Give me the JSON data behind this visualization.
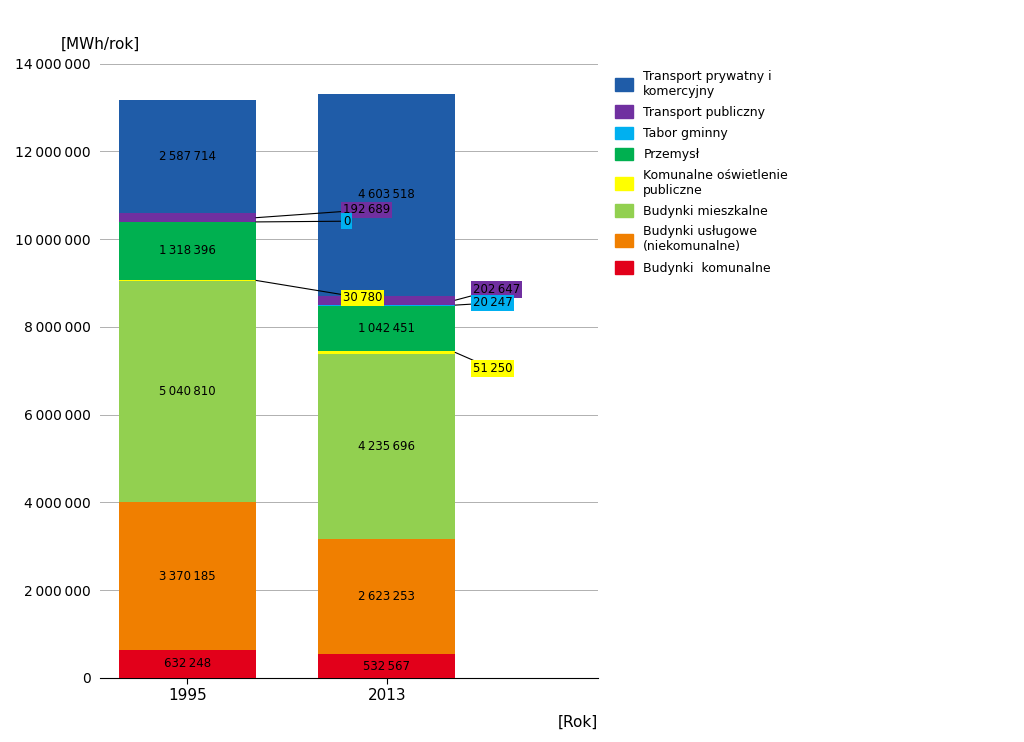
{
  "years": [
    "1995",
    "2013"
  ],
  "categories": [
    "Budynki  komunalne",
    "Budynki usługowe (niekomunalne)",
    "Budynki mieszkalne",
    "Komunalne oświetlenie publiczne",
    "Przemysł",
    "Tabor gminny",
    "Transport publiczny",
    "Transport prywatny i komercyjny"
  ],
  "colors": [
    "#e2001a",
    "#f07f00",
    "#92d050",
    "#ffff00",
    "#00b050",
    "#00b0f0",
    "#7030a0",
    "#1f5ca8"
  ],
  "values_1995": [
    632248,
    3370185,
    5040810,
    30780,
    1318396,
    0,
    192689,
    2587714
  ],
  "values_2013": [
    532567,
    2623253,
    4235696,
    51250,
    1042451,
    20247,
    202647,
    4603518
  ],
  "ylabel": "[MWh/rok]",
  "xlabel": "[Rok]",
  "ylim": [
    0,
    14000000
  ],
  "yticks": [
    0,
    2000000,
    4000000,
    6000000,
    8000000,
    10000000,
    12000000,
    14000000
  ],
  "legend_labels": [
    "Transport prywatny i\nkomercyjny",
    "Transport publiczny",
    "Tabor gminny",
    "Przemysł",
    "Komunalne oświetlenie\npubliczne",
    "Budynki mieszkalne",
    "Budynki usługowe\n(niekomunalne)",
    "Budynki  komunalne"
  ],
  "bar_width": 0.55,
  "x_positions": [
    0.3,
    1.1
  ]
}
